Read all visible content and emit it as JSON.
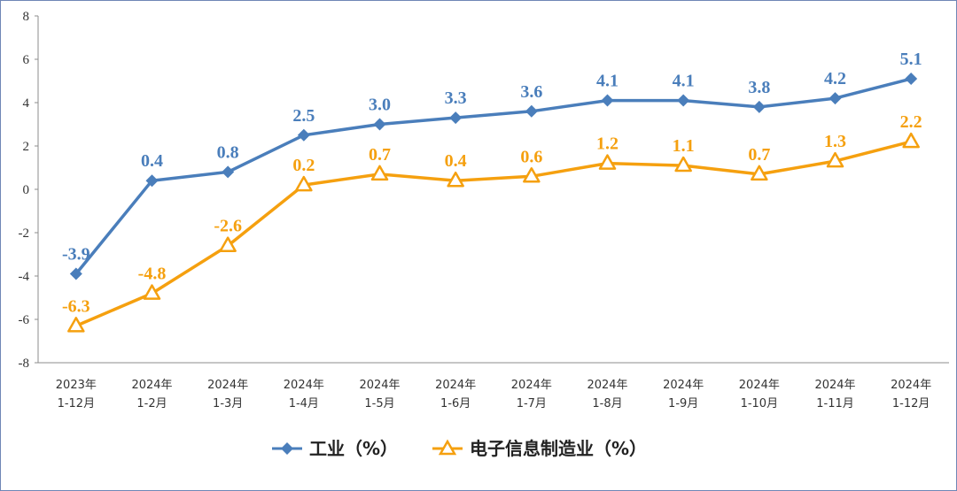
{
  "chart_data": {
    "type": "line",
    "categories": [
      [
        "2023年",
        "1-12月"
      ],
      [
        "2024年",
        "1-2月"
      ],
      [
        "2024年",
        "1-3月"
      ],
      [
        "2024年",
        "1-4月"
      ],
      [
        "2024年",
        "1-5月"
      ],
      [
        "2024年",
        "1-6月"
      ],
      [
        "2024年",
        "1-7月"
      ],
      [
        "2024年",
        "1-8月"
      ],
      [
        "2024年",
        "1-9月"
      ],
      [
        "2024年",
        "1-10月"
      ],
      [
        "2024年",
        "1-11月"
      ],
      [
        "2024年",
        "1-12月"
      ]
    ],
    "series": [
      {
        "name": "工业（%）",
        "color": "#4a7ebb",
        "marker": "diamond",
        "values": [
          -3.9,
          0.4,
          0.8,
          2.5,
          3.0,
          3.3,
          3.6,
          4.1,
          4.1,
          3.8,
          4.2,
          5.1
        ],
        "labels": [
          "-3.9",
          "0.4",
          "0.8",
          "2.5",
          "3.0",
          "3.3",
          "3.6",
          "4.1",
          "4.1",
          "3.8",
          "4.2",
          "5.1"
        ]
      },
      {
        "name": "电子信息制造业（%）",
        "color": "#f5a00f",
        "marker": "triangle",
        "values": [
          -6.3,
          -4.8,
          -2.6,
          0.2,
          0.7,
          0.4,
          0.6,
          1.2,
          1.1,
          0.7,
          1.3,
          2.2
        ],
        "labels": [
          "-6.3",
          "-4.8",
          "-2.6",
          "0.2",
          "0.7",
          "0.4",
          "0.6",
          "1.2",
          "1.1",
          "0.7",
          "1.3",
          "2.2"
        ]
      }
    ],
    "ylim": [
      -8,
      8
    ],
    "yticks": [
      "8",
      "6",
      "4",
      "2",
      "0",
      "-2",
      "-4",
      "-6",
      "-8"
    ],
    "grid": false,
    "legend_position": "bottom"
  }
}
